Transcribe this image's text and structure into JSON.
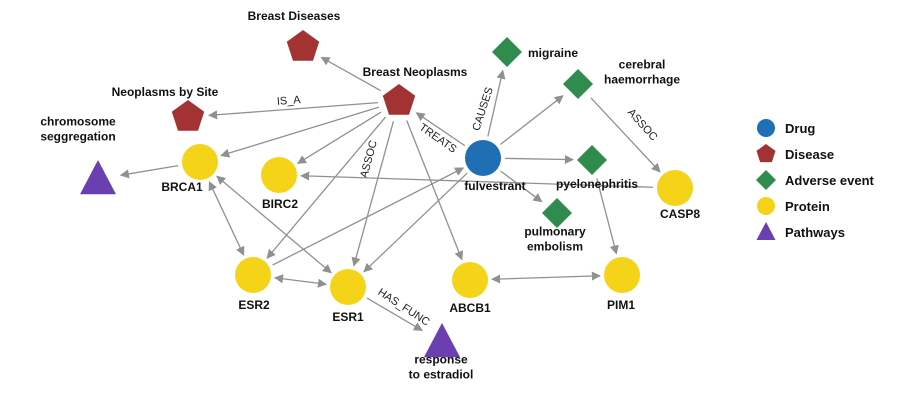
{
  "colors": {
    "drug": "#1f6fb5",
    "disease": "#a33232",
    "adverse_event": "#2f8c4e",
    "protein": "#f5d319",
    "pathway": "#6a3fb0",
    "edge": "#909090"
  },
  "legend": [
    {
      "type": "drug",
      "shape": "circle",
      "label": "Drug"
    },
    {
      "type": "disease",
      "shape": "pentagon",
      "label": "Disease"
    },
    {
      "type": "adverse_event",
      "shape": "diamond",
      "label": "Adverse event"
    },
    {
      "type": "protein",
      "shape": "circle",
      "label": "Protein"
    },
    {
      "type": "pathway",
      "shape": "triangle",
      "label": "Pathways"
    }
  ],
  "nodes": {
    "breast_diseases": {
      "type": "disease",
      "label": [
        "Breast Diseases"
      ]
    },
    "breast_neoplasms": {
      "type": "disease",
      "label": [
        "Breast Neoplasms"
      ]
    },
    "neoplasms_by_site": {
      "type": "disease",
      "label": [
        "Neoplasms by Site"
      ]
    },
    "migraine": {
      "type": "adverse_event",
      "label": [
        "migraine"
      ]
    },
    "cerebral_haemorrhage": {
      "type": "adverse_event",
      "label": [
        "cerebral",
        "haemorrhage"
      ]
    },
    "pyelonephritis": {
      "type": "adverse_event",
      "label": [
        "pyelonephritis"
      ]
    },
    "pulmonary_embolism": {
      "type": "adverse_event",
      "label": [
        "pulmonary",
        "embolism"
      ]
    },
    "fulvestrant": {
      "type": "drug",
      "label": [
        "fulvestrant"
      ]
    },
    "chromosome_segregation": {
      "type": "pathway",
      "label": [
        "chromosome",
        "seggregation"
      ]
    },
    "response_to_estradiol": {
      "type": "pathway",
      "label": [
        "response",
        "to estradiol"
      ]
    },
    "brca1": {
      "type": "protein",
      "label": [
        "BRCA1"
      ]
    },
    "birc2": {
      "type": "protein",
      "label": [
        "BIRC2"
      ]
    },
    "casp8": {
      "type": "protein",
      "label": [
        "CASP8"
      ]
    },
    "esr2": {
      "type": "protein",
      "label": [
        "ESR2"
      ]
    },
    "esr1": {
      "type": "protein",
      "label": [
        "ESR1"
      ]
    },
    "abcb1": {
      "type": "protein",
      "label": [
        "ABCB1"
      ]
    },
    "pim1": {
      "type": "protein",
      "label": [
        "PIM1"
      ]
    }
  },
  "edges": [
    {
      "from": "breast_neoplasms",
      "to": "breast_diseases",
      "dir": "forward"
    },
    {
      "from": "breast_neoplasms",
      "to": "neoplasms_by_site",
      "dir": "forward",
      "label": "IS_A"
    },
    {
      "from": "fulvestrant",
      "to": "breast_neoplasms",
      "dir": "forward",
      "label": "TREATS"
    },
    {
      "from": "fulvestrant",
      "to": "migraine",
      "dir": "forward",
      "label": "CAUSES"
    },
    {
      "from": "fulvestrant",
      "to": "cerebral_haemorrhage",
      "dir": "forward"
    },
    {
      "from": "fulvestrant",
      "to": "pyelonephritis",
      "dir": "forward"
    },
    {
      "from": "fulvestrant",
      "to": "pulmonary_embolism",
      "dir": "forward"
    },
    {
      "from": "breast_neoplasms",
      "to": "brca1",
      "dir": "forward"
    },
    {
      "from": "breast_neoplasms",
      "to": "birc2",
      "dir": "forward"
    },
    {
      "from": "breast_neoplasms",
      "to": "esr2",
      "dir": "forward",
      "label": "ASSOC"
    },
    {
      "from": "breast_neoplasms",
      "to": "esr1",
      "dir": "forward"
    },
    {
      "from": "breast_neoplasms",
      "to": "abcb1",
      "dir": "forward"
    },
    {
      "from": "brca1",
      "to": "chromosome_segregation",
      "dir": "forward"
    },
    {
      "from": "brca1",
      "to": "esr2",
      "dir": "both"
    },
    {
      "from": "brca1",
      "to": "esr1",
      "dir": "both"
    },
    {
      "from": "esr2",
      "to": "esr1",
      "dir": "both"
    },
    {
      "from": "esr2",
      "to": "fulvestrant",
      "dir": "forward"
    },
    {
      "from": "esr1",
      "to": "fulvestrant",
      "dir": "backward"
    },
    {
      "from": "esr1",
      "to": "response_to_estradiol",
      "dir": "forward",
      "label": "HAS_FUNC"
    },
    {
      "from": "abcb1",
      "to": "pim1",
      "dir": "both"
    },
    {
      "from": "pyelonephritis",
      "to": "pim1",
      "dir": "forward"
    },
    {
      "from": "cerebral_haemorrhage",
      "to": "casp8",
      "dir": "forward",
      "label": "ASSOC"
    },
    {
      "from": "casp8",
      "to": "birc2",
      "dir": "forward"
    }
  ]
}
